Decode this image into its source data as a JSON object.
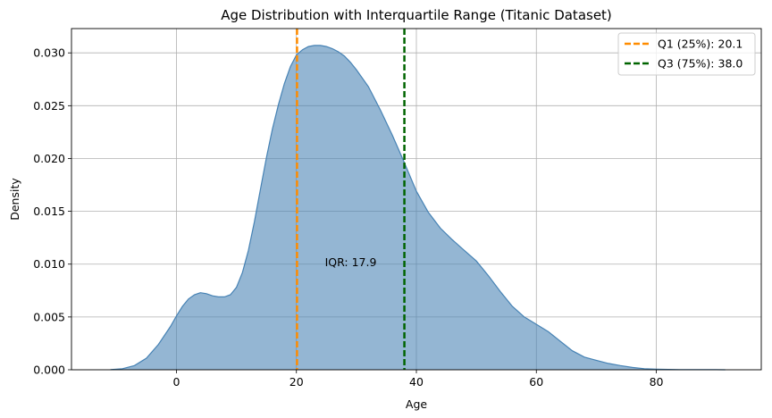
{
  "chart_data": {
    "type": "area",
    "title": "Age Distribution with Interquartile Range (Titanic Dataset)",
    "xlabel": "Age",
    "ylabel": "Density",
    "xlim": [
      -17.5,
      97.5
    ],
    "ylim": [
      0,
      0.0323
    ],
    "xticks": [
      0,
      20,
      40,
      60,
      80
    ],
    "yticks": [
      0.0,
      0.005,
      0.01,
      0.015,
      0.02,
      0.025,
      0.03
    ],
    "ytick_labels": [
      "0.000",
      "0.005",
      "0.010",
      "0.015",
      "0.020",
      "0.025",
      "0.030"
    ],
    "grid": true,
    "legend_position": "top-right",
    "series": [
      {
        "name": "",
        "color": "#4682b4",
        "x": [
          -11,
          -9,
          -7,
          -5,
          -3,
          -1,
          0,
          1,
          2,
          3,
          4,
          5,
          6,
          7,
          8,
          9,
          10,
          11,
          12,
          13,
          14,
          15,
          16,
          17,
          18,
          19,
          20,
          21,
          22,
          23,
          24,
          25,
          26,
          27,
          28,
          29,
          30,
          32,
          34,
          36,
          38,
          40,
          42,
          44,
          46,
          48,
          50,
          52,
          54,
          56,
          58,
          60,
          62,
          64,
          66,
          68,
          70,
          72,
          74,
          76,
          78,
          80,
          82,
          84,
          86,
          88,
          90,
          91.5
        ],
        "y": [
          2e-05,
          0.0001,
          0.0004,
          0.0011,
          0.0024,
          0.0041,
          0.0051,
          0.006,
          0.0067,
          0.0071,
          0.0073,
          0.0072,
          0.007,
          0.0069,
          0.0069,
          0.0071,
          0.0078,
          0.0092,
          0.0113,
          0.014,
          0.0171,
          0.0201,
          0.0228,
          0.0251,
          0.0271,
          0.0287,
          0.0298,
          0.0303,
          0.0306,
          0.0307,
          0.0307,
          0.0306,
          0.0304,
          0.0301,
          0.0297,
          0.0291,
          0.0284,
          0.0268,
          0.0246,
          0.0222,
          0.0196,
          0.0169,
          0.0149,
          0.0134,
          0.0123,
          0.0113,
          0.0103,
          0.0089,
          0.0074,
          0.006,
          0.005,
          0.0043,
          0.0036,
          0.0027,
          0.0018,
          0.0012,
          0.0009,
          0.0006,
          0.0004,
          0.00022,
          0.0001,
          6e-05,
          3e-05,
          2e-05,
          1e-05,
          1e-05,
          1e-05,
          0.0
        ]
      }
    ],
    "vlines": [
      {
        "label": "Q1 (25%): 20.1",
        "x": 20.1,
        "color": "#ff8c00"
      },
      {
        "label": "Q3 (75%): 38.0",
        "x": 38.0,
        "color": "#006400"
      }
    ],
    "annotations": [
      {
        "text": "IQR: 17.9",
        "x": 29.05,
        "y": 0.0102
      }
    ]
  }
}
